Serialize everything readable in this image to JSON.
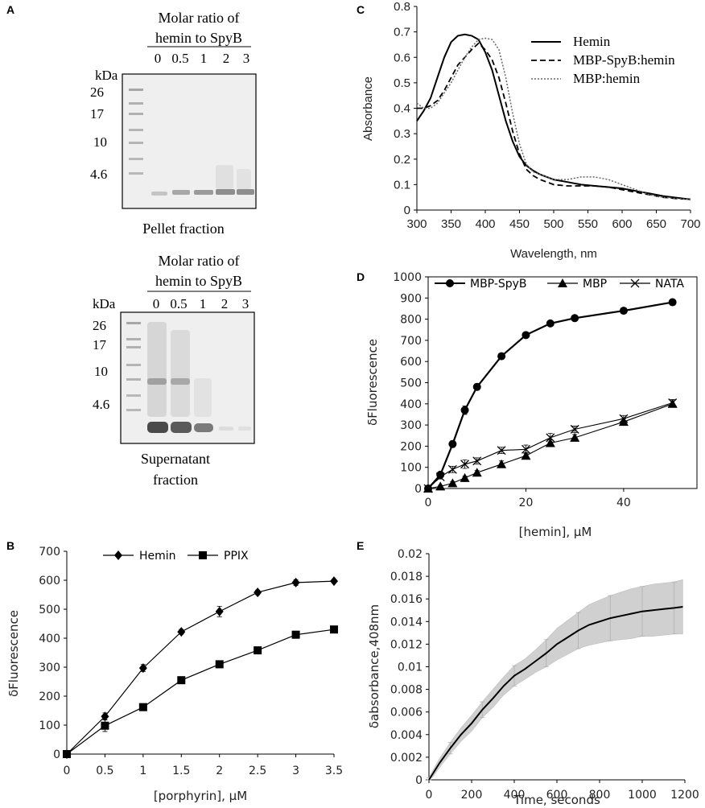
{
  "colors": {
    "ink": "#000000",
    "gel_bg": "#efefef",
    "band": "#7a7a7a",
    "band_dark": "#4a4a4a",
    "ladder": "#a8a8a8",
    "error_fill": "#d0d0d0"
  },
  "gel_pellet": {
    "panel_letter": "A",
    "title_line1": "Molar ratio of",
    "title_line2": "hemin to SpyB",
    "lane_labels": [
      "0",
      "0.5",
      "1",
      "2",
      "3"
    ],
    "kda_label": "kDa",
    "markers": [
      "26",
      "17",
      "10",
      "4.6"
    ],
    "caption": "Pellet  fraction"
  },
  "gel_supernatant": {
    "title_line1": "Molar ratio of",
    "title_line2": "hemin to SpyB",
    "lane_labels": [
      "0",
      "0.5",
      "1",
      "2",
      "3"
    ],
    "kda_label": "kDa",
    "markers": [
      "26",
      "17",
      "10",
      "4.6"
    ],
    "caption_line1": "Supernatant",
    "caption_line2": "fraction"
  },
  "chart_data": [
    {
      "id": "C",
      "panel_letter": "C",
      "type": "line",
      "title": "",
      "xlabel": "Wavelength, nm",
      "ylabel": "Absorbance",
      "xlim": [
        300,
        700
      ],
      "ylim": [
        0,
        0.8
      ],
      "xticks": [
        "300",
        "350",
        "400",
        "450",
        "500",
        "550",
        "600",
        "650",
        "700"
      ],
      "yticks": [
        "0",
        "0.1",
        "0.2",
        "0.3",
        "0.4",
        "0.5",
        "0.6",
        "0.7",
        "0.8"
      ],
      "legend": "top-right",
      "series": [
        {
          "name": "Hemin",
          "style": "solid",
          "x": [
            300,
            310,
            320,
            330,
            340,
            350,
            360,
            370,
            380,
            390,
            400,
            410,
            420,
            430,
            440,
            450,
            460,
            470,
            480,
            490,
            500,
            520,
            540,
            560,
            580,
            600,
            620,
            640,
            660,
            680,
            700
          ],
          "y": [
            0.35,
            0.39,
            0.44,
            0.52,
            0.6,
            0.66,
            0.685,
            0.69,
            0.685,
            0.67,
            0.62,
            0.55,
            0.45,
            0.35,
            0.27,
            0.21,
            0.175,
            0.155,
            0.14,
            0.13,
            0.12,
            0.11,
            0.1,
            0.095,
            0.09,
            0.085,
            0.075,
            0.065,
            0.055,
            0.048,
            0.042
          ]
        },
        {
          "name": "MBP-SpyB:hemin",
          "style": "dashed",
          "x": [
            300,
            310,
            320,
            330,
            340,
            350,
            360,
            370,
            380,
            390,
            400,
            410,
            420,
            430,
            440,
            450,
            460,
            470,
            480,
            490,
            500,
            520,
            540,
            560,
            580,
            600,
            620,
            640,
            660,
            680,
            700
          ],
          "y": [
            0.4,
            0.4,
            0.41,
            0.43,
            0.47,
            0.52,
            0.57,
            0.6,
            0.63,
            0.655,
            0.63,
            0.59,
            0.52,
            0.42,
            0.31,
            0.22,
            0.16,
            0.135,
            0.12,
            0.11,
            0.1,
            0.095,
            0.095,
            0.095,
            0.09,
            0.08,
            0.07,
            0.06,
            0.05,
            0.045,
            0.042
          ]
        },
        {
          "name": "MBP:hemin",
          "style": "dotted",
          "x": [
            300,
            310,
            320,
            330,
            340,
            350,
            360,
            370,
            380,
            390,
            400,
            410,
            420,
            430,
            440,
            450,
            460,
            470,
            480,
            490,
            500,
            520,
            540,
            560,
            580,
            600,
            620,
            640,
            660,
            680,
            700
          ],
          "y": [
            0.42,
            0.4,
            0.4,
            0.42,
            0.46,
            0.5,
            0.55,
            0.6,
            0.64,
            0.67,
            0.675,
            0.67,
            0.63,
            0.52,
            0.38,
            0.26,
            0.18,
            0.15,
            0.14,
            0.13,
            0.12,
            0.12,
            0.13,
            0.13,
            0.12,
            0.1,
            0.08,
            0.06,
            0.05,
            0.045,
            0.042
          ]
        }
      ]
    },
    {
      "id": "D",
      "panel_letter": "D",
      "type": "line",
      "title": "",
      "xlabel": "[hemin], µM",
      "ylabel": "δFluorescence",
      "xlim": [
        0,
        55
      ],
      "ylim": [
        0,
        1000
      ],
      "xticks": [
        "0",
        "20",
        "40"
      ],
      "yticks": [
        "0",
        "100",
        "200",
        "300",
        "400",
        "500",
        "600",
        "700",
        "800",
        "900",
        "1000"
      ],
      "legend": "top",
      "series": [
        {
          "name": "MBP-SpyB",
          "marker": "circle",
          "x": [
            0,
            2.5,
            5,
            7.5,
            10,
            15,
            20,
            25,
            30,
            40,
            50
          ],
          "y": [
            0,
            65,
            210,
            370,
            480,
            625,
            725,
            780,
            805,
            840,
            880
          ],
          "err": [
            5,
            10,
            15,
            20,
            15,
            12,
            10,
            10,
            8,
            8,
            8
          ]
        },
        {
          "name": "MBP",
          "marker": "triangle",
          "x": [
            0,
            2.5,
            5,
            7.5,
            10,
            15,
            20,
            25,
            30,
            40,
            50
          ],
          "y": [
            0,
            10,
            25,
            50,
            75,
            115,
            155,
            215,
            240,
            315,
            400
          ],
          "err": [
            5,
            5,
            8,
            8,
            10,
            15,
            15,
            15,
            15,
            15,
            15
          ]
        },
        {
          "name": "NATA",
          "marker": "x",
          "x": [
            0,
            2.5,
            5,
            7.5,
            10,
            15,
            20,
            25,
            30,
            40,
            50
          ],
          "y": [
            0,
            55,
            90,
            115,
            130,
            180,
            185,
            240,
            280,
            330,
            405
          ],
          "err": [
            5,
            10,
            15,
            20,
            15,
            15,
            20,
            20,
            15,
            15,
            15
          ]
        }
      ]
    },
    {
      "id": "B",
      "panel_letter": "B",
      "type": "line",
      "title": "",
      "xlabel": "[porphyrin], µM",
      "ylabel": "δFluorescence",
      "xlim": [
        0,
        3.5
      ],
      "ylim": [
        0,
        700
      ],
      "xticks": [
        "0",
        "0.5",
        "1",
        "1.5",
        "2",
        "2.5",
        "3",
        "3.5"
      ],
      "yticks": [
        "0",
        "100",
        "200",
        "300",
        "400",
        "500",
        "600",
        "700"
      ],
      "legend": "top",
      "series": [
        {
          "name": "Hemin",
          "marker": "diamond",
          "x": [
            0,
            0.5,
            1,
            1.5,
            2,
            2.5,
            3,
            3.5
          ],
          "y": [
            0,
            130,
            297,
            422,
            492,
            558,
            592,
            597
          ],
          "err": [
            3,
            12,
            12,
            8,
            18,
            8,
            10,
            5
          ]
        },
        {
          "name": "PPIX",
          "marker": "square",
          "x": [
            0,
            0.5,
            1,
            1.5,
            2,
            2.5,
            3,
            3.5
          ],
          "y": [
            0,
            98,
            162,
            255,
            310,
            358,
            412,
            430
          ],
          "err": [
            3,
            20,
            5,
            5,
            12,
            8,
            5,
            5
          ]
        }
      ]
    },
    {
      "id": "E",
      "panel_letter": "E",
      "type": "line",
      "title": "",
      "xlabel": "Time, seconds",
      "ylabel": "δabsorbance,408nm",
      "xlim": [
        0,
        1200
      ],
      "ylim": [
        0,
        0.02
      ],
      "xticks": [
        "0",
        "200",
        "400",
        "600",
        "800",
        "1000",
        "1200"
      ],
      "yticks": [
        "0",
        "0.002",
        "0.004",
        "0.006",
        "0.008",
        "0.01",
        "0.012",
        "0.014",
        "0.016",
        "0.018",
        "0.02"
      ],
      "legend": "none",
      "series": [
        {
          "name": "mean",
          "x": [
            0,
            20,
            50,
            100,
            150,
            200,
            250,
            300,
            350,
            400,
            450,
            500,
            550,
            600,
            650,
            700,
            750,
            800,
            850,
            900,
            950,
            1000,
            1050,
            1100,
            1150,
            1190
          ],
          "y": [
            0,
            0.0006,
            0.0015,
            0.0028,
            0.004,
            0.005,
            0.0062,
            0.0072,
            0.0083,
            0.0092,
            0.0098,
            0.0105,
            0.0112,
            0.012,
            0.0126,
            0.0132,
            0.0137,
            0.014,
            0.0143,
            0.0145,
            0.0147,
            0.0149,
            0.015,
            0.0151,
            0.0152,
            0.0153
          ],
          "err": [
            0.0002,
            0.0003,
            0.0004,
            0.0005,
            0.0006,
            0.0007,
            0.0007,
            0.0008,
            0.0008,
            0.0009,
            0.0009,
            0.001,
            0.0012,
            0.0014,
            0.0015,
            0.0016,
            0.0018,
            0.0019,
            0.002,
            0.0021,
            0.0022,
            0.0022,
            0.0023,
            0.0023,
            0.0023,
            0.0024
          ]
        }
      ]
    }
  ]
}
